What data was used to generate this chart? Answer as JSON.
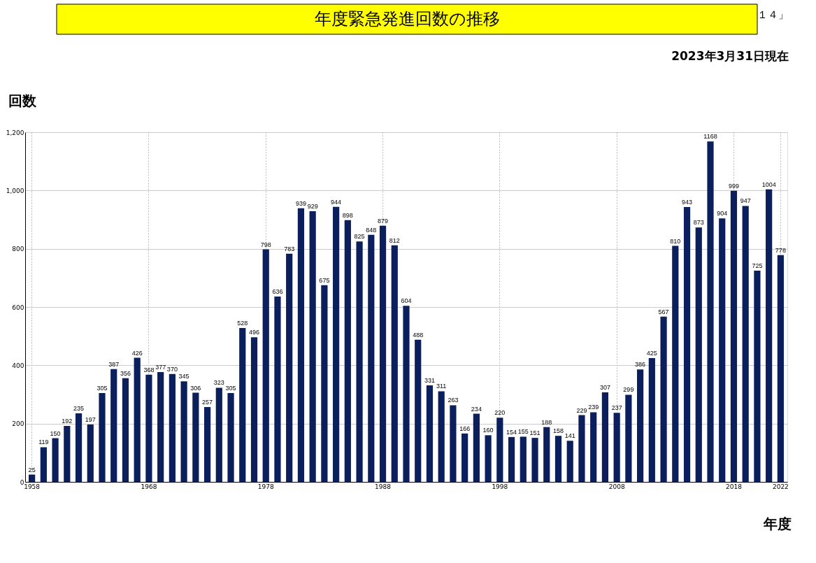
{
  "chart_data": {
    "type": "bar",
    "title": "年度緊急発進回数の推移",
    "subtitle": "2023年3月31日現在",
    "annotations": [
      "１４」"
    ],
    "xlabel": "年度",
    "ylabel": "回数",
    "categories": [
      "1958",
      null,
      null,
      null,
      null,
      null,
      null,
      null,
      null,
      null,
      "1968",
      null,
      null,
      null,
      null,
      null,
      null,
      null,
      null,
      null,
      "1978",
      null,
      null,
      null,
      null,
      null,
      null,
      null,
      null,
      null,
      "1988",
      null,
      null,
      null,
      null,
      null,
      null,
      null,
      null,
      null,
      "1998",
      null,
      null,
      null,
      null,
      null,
      null,
      null,
      null,
      null,
      "2008",
      null,
      null,
      null,
      null,
      null,
      null,
      null,
      null,
      null,
      "2018",
      null,
      null,
      null,
      "2022"
    ],
    "values": [
      25,
      119,
      150,
      192,
      235,
      197,
      305,
      387,
      356,
      426,
      368,
      377,
      370,
      345,
      306,
      257,
      323,
      305,
      528,
      496,
      798,
      636,
      783,
      939,
      929,
      675,
      944,
      898,
      825,
      848,
      879,
      812,
      604,
      488,
      331,
      311,
      263,
      166,
      234,
      160,
      220,
      154,
      155,
      151,
      188,
      158,
      141,
      229,
      239,
      307,
      237,
      299,
      386,
      425,
      567,
      810,
      943,
      873,
      1168,
      904,
      999,
      947,
      725,
      1004,
      778
    ],
    "color": "#0b1f5c",
    "ylim": [
      0,
      1200
    ],
    "yticks": [
      0,
      200,
      400,
      600,
      800,
      {
        "value": 1000,
        "label": "1,000"
      },
      {
        "value": 1200,
        "label": "1,200"
      }
    ],
    "grid": true,
    "data_labels": true
  }
}
